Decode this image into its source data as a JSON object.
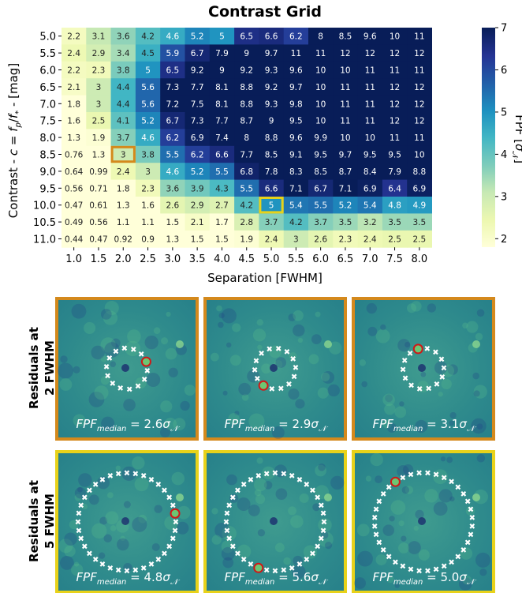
{
  "chart_data": {
    "type": "heatmap",
    "title": "Contrast Grid",
    "xlabel": "Separation [FWHM]",
    "ylabel": "Contrast - c = f_p/f_* - [mag]",
    "x": [
      "1.0",
      "1.5",
      "2.0",
      "2.5",
      "3.0",
      "3.5",
      "4.0",
      "4.5",
      "5.0",
      "5.5",
      "6.0",
      "6.5",
      "7.0",
      "7.5",
      "8.0"
    ],
    "y": [
      "5.0",
      "5.5",
      "6.0",
      "6.5",
      "7.0",
      "7.5",
      "8.0",
      "8.5",
      "9.0",
      "9.5",
      "10.0",
      "10.5",
      "11.0"
    ],
    "values": [
      [
        "2.2",
        "3.1",
        "3.6",
        "4.2",
        "4.6",
        "5.2",
        "5",
        "6.5",
        "6.6",
        "6.2",
        "8",
        "8.5",
        "9.6",
        "10",
        "11"
      ],
      [
        "2.4",
        "2.9",
        "3.4",
        "4.5",
        "5.9",
        "6.7",
        "7.9",
        "9",
        "9.7",
        "11",
        "11",
        "12",
        "12",
        "12",
        "12"
      ],
      [
        "2.2",
        "2.3",
        "3.8",
        "5",
        "6.5",
        "9.2",
        "9",
        "9.2",
        "9.3",
        "9.6",
        "10",
        "10",
        "11",
        "11",
        "11"
      ],
      [
        "2.1",
        "3",
        "4.4",
        "5.6",
        "7.3",
        "7.7",
        "8.1",
        "8.8",
        "9.2",
        "9.7",
        "10",
        "11",
        "11",
        "12",
        "12"
      ],
      [
        "1.8",
        "3",
        "4.4",
        "5.6",
        "7.2",
        "7.5",
        "8.1",
        "8.8",
        "9.3",
        "9.8",
        "10",
        "11",
        "11",
        "12",
        "12"
      ],
      [
        "1.6",
        "2.5",
        "4.1",
        "5.2",
        "6.7",
        "7.3",
        "7.7",
        "8.7",
        "9",
        "9.5",
        "10",
        "11",
        "11",
        "12",
        "12"
      ],
      [
        "1.3",
        "1.9",
        "3.7",
        "4.6",
        "6.2",
        "6.9",
        "7.4",
        "8",
        "8.8",
        "9.6",
        "9.9",
        "10",
        "10",
        "11",
        "11"
      ],
      [
        "0.76",
        "1.3",
        "3",
        "3.8",
        "5.5",
        "6.2",
        "6.6",
        "7.7",
        "8.5",
        "9.1",
        "9.5",
        "9.7",
        "9.5",
        "9.5",
        "10"
      ],
      [
        "0.64",
        "0.99",
        "2.4",
        "3",
        "4.6",
        "5.2",
        "5.5",
        "6.8",
        "7.8",
        "8.3",
        "8.5",
        "8.7",
        "8.4",
        "7.9",
        "8.8"
      ],
      [
        "0.56",
        "0.71",
        "1.8",
        "2.3",
        "3.6",
        "3.9",
        "4.3",
        "5.5",
        "6.6",
        "7.1",
        "6.7",
        "7.1",
        "6.9",
        "6.4",
        "6.9"
      ],
      [
        "0.47",
        "0.61",
        "1.3",
        "1.6",
        "2.6",
        "2.9",
        "2.7",
        "4.2",
        "5",
        "5.4",
        "5.5",
        "5.2",
        "5.4",
        "4.8",
        "4.9"
      ],
      [
        "0.49",
        "0.56",
        "1.1",
        "1.1",
        "1.5",
        "2.1",
        "1.7",
        "2.8",
        "3.7",
        "4.2",
        "3.7",
        "3.5",
        "3.2",
        "3.5",
        "3.5"
      ],
      [
        "0.44",
        "0.47",
        "0.92",
        "0.9",
        "1.3",
        "1.5",
        "1.5",
        "1.9",
        "2.4",
        "3",
        "2.6",
        "2.3",
        "2.4",
        "2.5",
        "2.5"
      ]
    ],
    "highlights": [
      {
        "x": "2.0",
        "y": "8.5",
        "color": "#d4891c"
      },
      {
        "x": "5.0",
        "y": "10.0",
        "color": "#e8d21a"
      }
    ],
    "colorbar": {
      "label": "FPF [σ_N]",
      "ticks": [
        "2",
        "3",
        "4",
        "5",
        "6",
        "7"
      ],
      "range": [
        1.8,
        7
      ]
    },
    "colormap": "YlGnBu"
  },
  "panels": {
    "row1_label_line1": "Residuals at",
    "row1_label_line2": "2 FWHM",
    "row2_label_line1": "Residuals at",
    "row2_label_line2": "5 FWHM",
    "row1_border": "#d4891c",
    "row2_border": "#e8d21a",
    "row1": [
      {
        "fpf_value": "2.6"
      },
      {
        "fpf_value": "2.9"
      },
      {
        "fpf_value": "3.1"
      }
    ],
    "row2": [
      {
        "fpf_value": "4.8"
      },
      {
        "fpf_value": "5.6"
      },
      {
        "fpf_value": "5.0"
      }
    ],
    "fpf_label": "FPF",
    "fpf_subscript": "median",
    "fpf_unit": "σ"
  }
}
